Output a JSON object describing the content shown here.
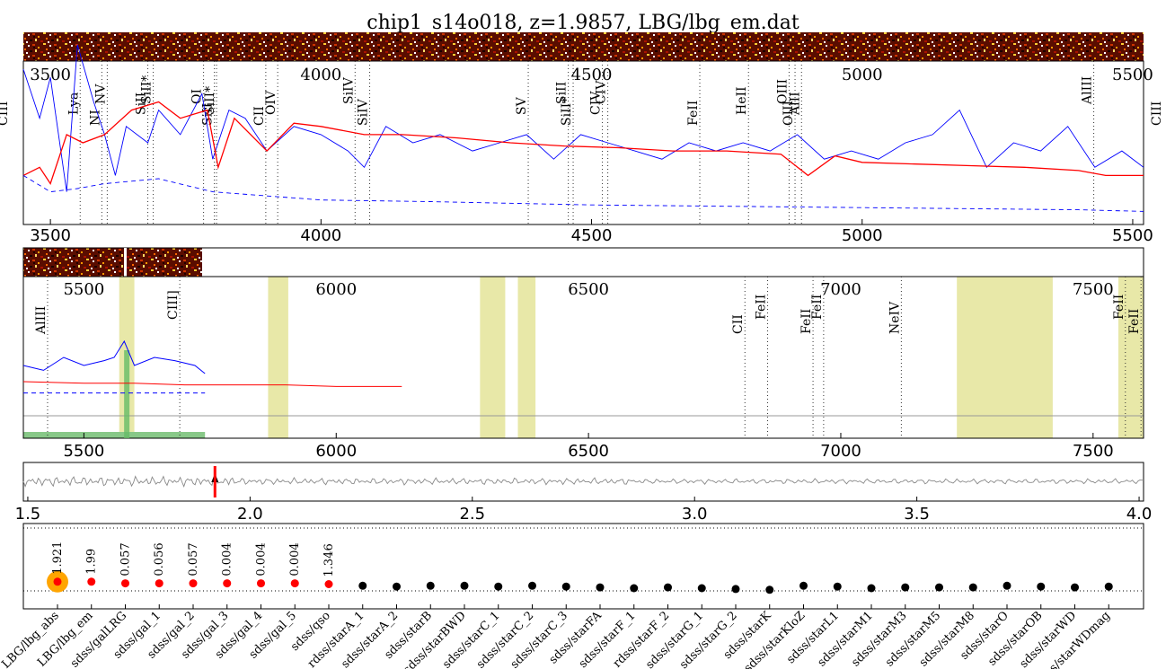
{
  "chart_data": [
    {
      "type": "line",
      "panel": "spectrum-top",
      "title": "chip1_s14o018, z=1.9857, LBG/lbg_em.dat",
      "xlim": [
        3450,
        5520
      ],
      "x_ticks": [
        3500,
        4000,
        4500,
        5000,
        5500
      ],
      "series": [
        {
          "role": "data",
          "color": "#0000ff",
          "style": "solid",
          "x": [
            3450,
            3480,
            3500,
            3530,
            3550,
            3580,
            3600,
            3620,
            3640,
            3680,
            3700,
            3740,
            3780,
            3800,
            3830,
            3860,
            3900,
            3950,
            4000,
            4050,
            4080,
            4120,
            4170,
            4220,
            4280,
            4330,
            4380,
            4430,
            4480,
            4530,
            4580,
            4630,
            4680,
            4730,
            4780,
            4830,
            4880,
            4930,
            4980,
            5030,
            5080,
            5130,
            5180,
            5230,
            5280,
            5330,
            5380,
            5430,
            5480,
            5520
          ],
          "y": [
            0.95,
            0.65,
            0.9,
            0.2,
            1.1,
            0.75,
            0.55,
            0.3,
            0.6,
            0.5,
            0.7,
            0.55,
            0.8,
            0.4,
            0.7,
            0.65,
            0.45,
            0.6,
            0.55,
            0.45,
            0.35,
            0.6,
            0.5,
            0.55,
            0.45,
            0.5,
            0.55,
            0.4,
            0.55,
            0.5,
            0.45,
            0.4,
            0.5,
            0.45,
            0.5,
            0.45,
            0.55,
            0.4,
            0.45,
            0.4,
            0.5,
            0.55,
            0.7,
            0.35,
            0.5,
            0.45,
            0.6,
            0.35,
            0.45,
            0.35
          ]
        },
        {
          "role": "template",
          "color": "#ff0000",
          "style": "solid",
          "x": [
            3450,
            3480,
            3500,
            3530,
            3560,
            3600,
            3650,
            3700,
            3740,
            3790,
            3810,
            3840,
            3900,
            3950,
            4000,
            4080,
            4150,
            4250,
            4350,
            4450,
            4550,
            4650,
            4750,
            4850,
            4900,
            4950,
            5000,
            5100,
            5200,
            5300,
            5400,
            5450,
            5520
          ],
          "y": [
            0.3,
            0.35,
            0.25,
            0.55,
            0.5,
            0.55,
            0.7,
            0.75,
            0.65,
            0.7,
            0.35,
            0.65,
            0.45,
            0.62,
            0.6,
            0.55,
            0.55,
            0.53,
            0.5,
            0.48,
            0.47,
            0.45,
            0.45,
            0.43,
            0.3,
            0.42,
            0.38,
            0.37,
            0.36,
            0.35,
            0.33,
            0.3,
            0.3
          ]
        },
        {
          "role": "error",
          "color": "#0000ff",
          "style": "dashed",
          "x": [
            3450,
            3500,
            3550,
            3600,
            3700,
            3800,
            4000,
            4200,
            4500,
            4800,
            5100,
            5400,
            5520
          ],
          "y": [
            0.3,
            0.2,
            0.22,
            0.25,
            0.28,
            0.2,
            0.15,
            0.14,
            0.12,
            0.11,
            0.1,
            0.09,
            0.08
          ]
        }
      ],
      "lines": [
        {
          "name": "CIII",
          "x": 3400
        },
        {
          "name": "Lya",
          "x": 3555
        },
        {
          "name": "NV",
          "x": 3605
        },
        {
          "name": "NI",
          "x": 3595
        },
        {
          "name": "SiII",
          "x": 3680
        },
        {
          "name": "SiII*",
          "x": 3690
        },
        {
          "name": "SiII",
          "x": 3803
        },
        {
          "name": "SiII*",
          "x": 3807
        },
        {
          "name": "OI",
          "x": 3783
        },
        {
          "name": "CII",
          "x": 3898
        },
        {
          "name": "OIV",
          "x": 3920
        },
        {
          "name": "SiIV",
          "x": 4063
        },
        {
          "name": "SiIV",
          "x": 4090
        },
        {
          "name": "SV",
          "x": 4383
        },
        {
          "name": "SiII",
          "x": 4457
        },
        {
          "name": "SiII*",
          "x": 4466
        },
        {
          "name": "CIV",
          "x": 4520
        },
        {
          "name": "CIV",
          "x": 4530
        },
        {
          "name": "FeII",
          "x": 4700
        },
        {
          "name": "HeII",
          "x": 4790
        },
        {
          "name": "OIII",
          "x": 4865
        },
        {
          "name": "OIII",
          "x": 4876
        },
        {
          "name": "AlII",
          "x": 4888
        },
        {
          "name": "AlIII",
          "x": 5428
        },
        {
          "name": "CIII",
          "x": 5690
        }
      ]
    },
    {
      "type": "line",
      "panel": "spectrum-bottom",
      "xlim": [
        5380,
        7600
      ],
      "x_ticks": [
        5500,
        6000,
        6500,
        7000,
        7500
      ],
      "series": [
        {
          "role": "data",
          "color": "#0000ff",
          "style": "solid",
          "x": [
            5380,
            5420,
            5460,
            5500,
            5540,
            5560,
            5580,
            5600,
            5640,
            5680,
            5720,
            5740
          ],
          "y": [
            0.45,
            0.42,
            0.5,
            0.45,
            0.48,
            0.5,
            0.6,
            0.45,
            0.5,
            0.48,
            0.45,
            0.4
          ]
        },
        {
          "role": "template",
          "color": "#ff0000",
          "style": "solid",
          "x": [
            5380,
            5500,
            5600,
            5700,
            5800,
            5900,
            6000,
            6100,
            6130
          ],
          "y": [
            0.35,
            0.34,
            0.34,
            0.33,
            0.33,
            0.33,
            0.32,
            0.32,
            0.32
          ]
        },
        {
          "role": "error",
          "color": "#0000ff",
          "style": "dashed",
          "x": [
            5380,
            5740
          ],
          "y": [
            0.28,
            0.28
          ]
        }
      ],
      "sky_bands": [
        [
          5570,
          5600
        ],
        [
          5865,
          5905
        ],
        [
          6285,
          6335
        ],
        [
          6360,
          6395
        ],
        [
          7230,
          7420
        ],
        [
          7550,
          7600
        ]
      ],
      "lines": [
        {
          "name": "AlIII",
          "x": 5428
        },
        {
          "name": "CIII]",
          "x": 5690
        },
        {
          "name": "CII",
          "x": 6810
        },
        {
          "name": "FeII",
          "x": 6855
        },
        {
          "name": "FeII",
          "x": 6945
        },
        {
          "name": "FeII",
          "x": 6966
        },
        {
          "name": "NeIV",
          "x": 7120
        },
        {
          "name": "FeII",
          "x": 7564
        },
        {
          "name": "FeII",
          "x": 7595
        }
      ]
    },
    {
      "type": "line",
      "panel": "correlation",
      "xlim": [
        1.49,
        4.01
      ],
      "x_ticks": [
        "1.5",
        "2.0",
        "2.5",
        "3.0",
        "3.5",
        "4.0"
      ],
      "peak_z": 1.921
    },
    {
      "type": "scatter",
      "panel": "template-fits",
      "categories": [
        "LBG/lbg_abs",
        "LBG/lbg_em",
        "sdss/galLRG",
        "sdss/gal_1",
        "sdss/gal_2",
        "sdss/gal_3",
        "sdss/gal_4",
        "sdss/gal_5",
        "sdss/qso",
        "sdss/starA_1",
        "sdss/starA_2",
        "sdss/starB",
        "sdss/starBWD",
        "sdss/starC_1",
        "sdss/starC_2",
        "sdss/starC_3",
        "sdss/starFA",
        "sdss/starF_1",
        "sdss/starF_2",
        "sdss/starG_1",
        "sdss/starG_2",
        "sdss/starK",
        "sdss/starKloZ",
        "sdss/starL1",
        "sdss/starM1",
        "sdss/starM3",
        "sdss/starM5",
        "sdss/starM8",
        "sdss/starO",
        "sdss/starOB",
        "sdss/starWD",
        "sdss/starWDmag"
      ],
      "display_categories": [
        "LBG/lbg_abs",
        "LBG/lbg_em",
        "sdss/galLRG",
        "sdss/gal_1",
        "sdss/gal_2",
        "sdss/gal_3",
        "sdss/gal_4",
        "sdss/gal_5",
        "sdss/qso",
        "rdss/starA_1",
        "sdss/starA_2",
        "sdss/starB",
        "sdss/starBWD",
        "sdss/starC_1",
        "sdss/starC_2",
        "sdss/starC_3",
        "sdss/starFA",
        "sdss/starF_1",
        "rdss/starF_2",
        "sdss/starG_1",
        "sdss/starG_2",
        "sdss/starK",
        "sdss/starKloZ",
        "sdss/starL1",
        "sdss/starM1",
        "sdss/starM3",
        "sdss/starM5",
        "sdss/starM8",
        "sdss/starO",
        "sdss/starOB",
        "sdss/starWD",
        "sdss/starWDmag"
      ],
      "z_labels": [
        "1.921",
        "1.99",
        "0.057",
        "0.056",
        "0.057",
        "0.004",
        "0.004",
        "0.004",
        "1.346"
      ],
      "values": [
        0.9,
        0.9,
        0.8,
        0.8,
        0.8,
        0.8,
        0.8,
        0.8,
        0.75,
        0.65,
        0.6,
        0.65,
        0.65,
        0.6,
        0.65,
        0.6,
        0.55,
        0.5,
        0.55,
        0.5,
        0.45,
        0.4,
        0.65,
        0.6,
        0.5,
        0.55,
        0.55,
        0.55,
        0.65,
        0.6,
        0.55,
        0.6
      ],
      "colors": {
        "galaxy_qso": "#ff0000",
        "star": "#000000",
        "best": "#ffa500"
      },
      "best_index": 0
    }
  ]
}
